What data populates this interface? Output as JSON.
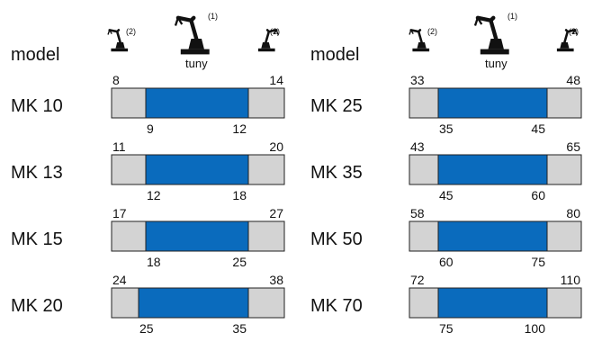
{
  "columns": [
    {
      "header": "model",
      "icons": {
        "left_note": "(2)",
        "center_note": "(1)",
        "center_label": "tuny",
        "right_note": "(2)"
      },
      "rows": [
        {
          "model": "MK 10",
          "outer_min": 8,
          "outer_max": 14,
          "inner_min": 9,
          "inner_max": 12
        },
        {
          "model": "MK 13",
          "outer_min": 11,
          "outer_max": 20,
          "inner_min": 12,
          "inner_max": 18
        },
        {
          "model": "MK 15",
          "outer_min": 17,
          "outer_max": 27,
          "inner_min": 18,
          "inner_max": 25
        },
        {
          "model": "MK 20",
          "outer_min": 24,
          "outer_max": 38,
          "inner_min": 25,
          "inner_max": 35
        }
      ]
    },
    {
      "header": "model",
      "icons": {
        "left_note": "(2)",
        "center_note": "(1)",
        "center_label": "tuny",
        "right_note": "(2)"
      },
      "rows": [
        {
          "model": "MK 25",
          "outer_min": 33,
          "outer_max": 48,
          "inner_min": 35,
          "inner_max": 45
        },
        {
          "model": "MK 35",
          "outer_min": 43,
          "outer_max": 65,
          "inner_min": 45,
          "inner_max": 60
        },
        {
          "model": "MK 50",
          "outer_min": 58,
          "outer_max": 80,
          "inner_min": 60,
          "inner_max": 75
        },
        {
          "model": "MK 70",
          "outer_min": 72,
          "outer_max": 110,
          "inner_min": 75,
          "inner_max": 100
        }
      ]
    }
  ]
}
